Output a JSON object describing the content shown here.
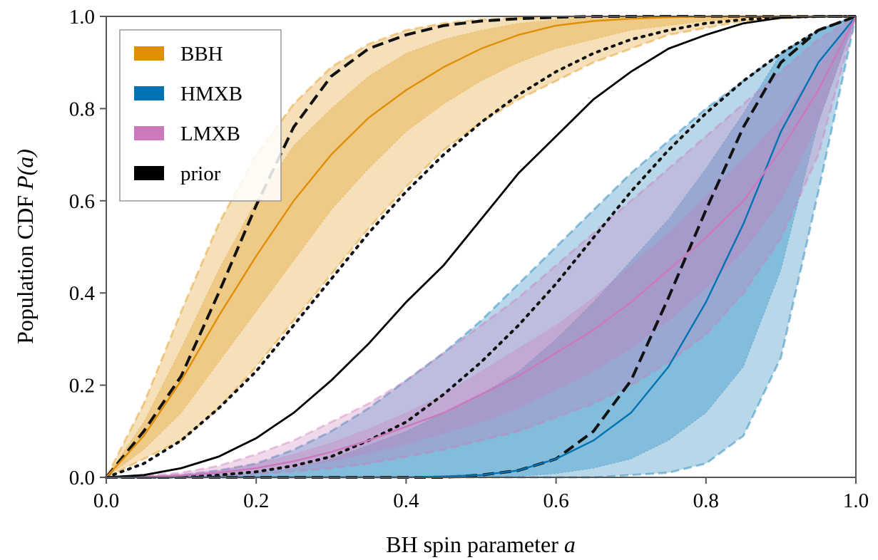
{
  "chart_data": {
    "type": "line",
    "xlabel": "BH spin parameter",
    "xlabel_var": "a",
    "ylabel": "Population CDF",
    "ylabel_var": "P(a)",
    "xlim": [
      0,
      1
    ],
    "ylim": [
      0,
      1
    ],
    "xticks": [
      "0.0",
      "0.2",
      "0.4",
      "0.6",
      "0.8",
      "1.0"
    ],
    "yticks": [
      "0.0",
      "0.2",
      "0.4",
      "0.6",
      "0.8",
      "1.0"
    ],
    "grid": false,
    "legend_placement": "top-left",
    "legend": [
      {
        "label": "BBH",
        "color": "#de8f05"
      },
      {
        "label": "HMXB",
        "color": "#0173b2"
      },
      {
        "label": "LMXB",
        "color": "#cc78bc"
      },
      {
        "label": "prior",
        "color": "#000000"
      }
    ],
    "x": [
      0.0,
      0.05,
      0.1,
      0.15,
      0.2,
      0.25,
      0.3,
      0.35,
      0.4,
      0.45,
      0.5,
      0.55,
      0.6,
      0.65,
      0.7,
      0.75,
      0.8,
      0.85,
      0.9,
      0.95,
      1.0
    ],
    "series": [
      {
        "name": "BBH",
        "color": "#de8f05",
        "median": [
          0.0,
          0.09,
          0.21,
          0.35,
          0.48,
          0.6,
          0.7,
          0.78,
          0.84,
          0.89,
          0.93,
          0.96,
          0.98,
          0.99,
          0.995,
          0.998,
          1.0,
          1.0,
          1.0,
          1.0,
          1.0
        ],
        "band_outer_low": [
          0.0,
          0.04,
          0.08,
          0.15,
          0.24,
          0.34,
          0.44,
          0.54,
          0.63,
          0.71,
          0.77,
          0.82,
          0.86,
          0.9,
          0.93,
          0.96,
          0.975,
          0.99,
          0.995,
          0.999,
          1.0
        ],
        "band_outer_high": [
          0.0,
          0.16,
          0.36,
          0.55,
          0.7,
          0.81,
          0.89,
          0.94,
          0.97,
          0.985,
          0.993,
          0.997,
          0.999,
          1.0,
          1.0,
          1.0,
          1.0,
          1.0,
          1.0,
          1.0,
          1.0
        ],
        "band_inner_low": [
          0.0,
          0.06,
          0.14,
          0.25,
          0.36,
          0.47,
          0.58,
          0.67,
          0.75,
          0.81,
          0.86,
          0.9,
          0.93,
          0.95,
          0.97,
          0.98,
          0.99,
          0.995,
          1.0,
          1.0,
          1.0
        ],
        "band_inner_high": [
          0.0,
          0.12,
          0.28,
          0.45,
          0.6,
          0.72,
          0.8,
          0.87,
          0.92,
          0.95,
          0.97,
          0.985,
          0.993,
          0.997,
          0.999,
          1.0,
          1.0,
          1.0,
          1.0,
          1.0,
          1.0
        ],
        "dashed_ref": [
          0.0,
          0.1,
          0.22,
          0.4,
          0.59,
          0.76,
          0.87,
          0.93,
          0.96,
          0.98,
          0.99,
          0.995,
          0.998,
          1.0,
          1.0,
          1.0,
          1.0,
          1.0,
          1.0,
          1.0,
          1.0
        ],
        "dotted_ref": [
          0.0,
          0.03,
          0.08,
          0.15,
          0.23,
          0.33,
          0.43,
          0.53,
          0.62,
          0.7,
          0.77,
          0.83,
          0.88,
          0.92,
          0.95,
          0.97,
          0.985,
          0.993,
          0.998,
          1.0,
          1.0
        ]
      },
      {
        "name": "HMXB",
        "color": "#0173b2",
        "median": [
          0.0,
          0.0,
          0.0,
          0.0,
          0.0,
          0.0,
          0.0,
          0.0,
          0.0,
          0.002,
          0.005,
          0.015,
          0.04,
          0.08,
          0.14,
          0.24,
          0.38,
          0.55,
          0.75,
          0.9,
          1.0
        ],
        "band_outer_low": [
          0.0,
          0.0,
          0.0,
          0.0,
          0.0,
          0.0,
          0.0,
          0.0,
          0.0,
          0.0,
          0.0,
          0.0,
          0.0,
          0.0,
          0.005,
          0.01,
          0.03,
          0.09,
          0.26,
          0.62,
          1.0
        ],
        "band_outer_high": [
          0.0,
          0.001,
          0.005,
          0.015,
          0.03,
          0.06,
          0.1,
          0.15,
          0.21,
          0.27,
          0.34,
          0.42,
          0.5,
          0.58,
          0.66,
          0.73,
          0.8,
          0.86,
          0.92,
          0.97,
          1.0
        ],
        "band_inner_low": [
          0.0,
          0.0,
          0.0,
          0.0,
          0.0,
          0.0,
          0.0,
          0.0,
          0.0,
          0.0,
          0.0,
          0.002,
          0.008,
          0.02,
          0.04,
          0.08,
          0.14,
          0.24,
          0.45,
          0.77,
          1.0
        ],
        "band_inner_high": [
          0.0,
          0.0,
          0.001,
          0.004,
          0.01,
          0.02,
          0.04,
          0.07,
          0.1,
          0.14,
          0.18,
          0.23,
          0.3,
          0.38,
          0.47,
          0.56,
          0.67,
          0.79,
          0.92,
          0.97,
          1.0
        ],
        "dashed_ref": [
          0.0,
          0.0,
          0.0,
          0.0,
          0.0,
          0.0,
          0.0,
          0.0,
          0.0,
          0.0,
          0.005,
          0.015,
          0.04,
          0.1,
          0.21,
          0.39,
          0.58,
          0.76,
          0.9,
          0.97,
          1.0
        ],
        "dotted_ref": [
          0.0,
          0.0,
          0.001,
          0.005,
          0.012,
          0.025,
          0.045,
          0.08,
          0.12,
          0.18,
          0.25,
          0.33,
          0.42,
          0.52,
          0.62,
          0.71,
          0.79,
          0.86,
          0.92,
          0.97,
          1.0
        ]
      },
      {
        "name": "LMXB",
        "color": "#cc78bc",
        "median": [
          0.0,
          0.001,
          0.004,
          0.01,
          0.02,
          0.035,
          0.055,
          0.08,
          0.11,
          0.14,
          0.18,
          0.22,
          0.27,
          0.32,
          0.38,
          0.45,
          0.52,
          0.6,
          0.71,
          0.84,
          1.0
        ],
        "band_outer_low": [
          0.0,
          0.0,
          0.001,
          0.003,
          0.007,
          0.013,
          0.02,
          0.03,
          0.045,
          0.06,
          0.08,
          0.1,
          0.13,
          0.16,
          0.2,
          0.25,
          0.31,
          0.4,
          0.52,
          0.7,
          1.0
        ],
        "band_outer_high": [
          0.0,
          0.003,
          0.01,
          0.025,
          0.05,
          0.08,
          0.12,
          0.16,
          0.21,
          0.27,
          0.33,
          0.39,
          0.46,
          0.53,
          0.6,
          0.67,
          0.74,
          0.81,
          0.88,
          0.95,
          1.0
        ],
        "band_inner_low": [
          0.0,
          0.0,
          0.002,
          0.006,
          0.012,
          0.022,
          0.035,
          0.052,
          0.072,
          0.095,
          0.12,
          0.15,
          0.19,
          0.23,
          0.28,
          0.34,
          0.41,
          0.49,
          0.6,
          0.77,
          1.0
        ],
        "band_inner_high": [
          0.0,
          0.002,
          0.007,
          0.016,
          0.03,
          0.05,
          0.075,
          0.105,
          0.14,
          0.18,
          0.23,
          0.28,
          0.33,
          0.39,
          0.46,
          0.53,
          0.61,
          0.69,
          0.78,
          0.89,
          1.0
        ]
      },
      {
        "name": "prior",
        "color": "#000000",
        "median": [
          0.0,
          0.005,
          0.02,
          0.045,
          0.085,
          0.14,
          0.21,
          0.29,
          0.38,
          0.46,
          0.56,
          0.66,
          0.74,
          0.82,
          0.88,
          0.93,
          0.96,
          0.985,
          0.997,
          1.0,
          1.0
        ]
      }
    ]
  }
}
